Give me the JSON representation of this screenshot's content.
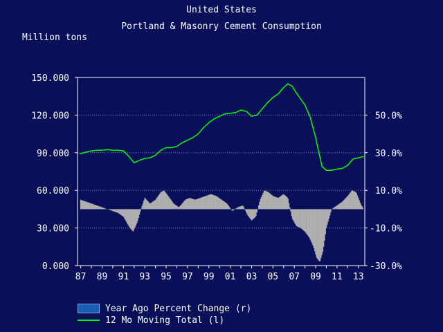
{
  "chart_data": {
    "type": "bar+line",
    "title": "United States",
    "subtitle": "Portland & Masonry Cement Consumption",
    "ylabel_left": "Million tons",
    "y_left": {
      "min": 0,
      "max": 150,
      "ticks": [
        "0.000",
        "30.000",
        "60.000",
        "90.000",
        "120.000",
        "150.000"
      ]
    },
    "y_right": {
      "min": -30,
      "max": 70,
      "ticks": [
        "-30.0%",
        "-10.0%",
        "10.0%",
        "30.0%",
        "50.0%"
      ],
      "tick_values": [
        -30,
        -10,
        10,
        30,
        50
      ]
    },
    "x": {
      "min": 1986.7,
      "max": 2013.6,
      "ticks": [
        "87",
        "89",
        "91",
        "93",
        "95",
        "97",
        "99",
        "01",
        "03",
        "05",
        "07",
        "09",
        "11",
        "13"
      ],
      "tick_values": [
        1987,
        1989,
        1991,
        1993,
        1995,
        1997,
        1999,
        2001,
        2003,
        2005,
        2007,
        2009,
        2011,
        2013
      ]
    },
    "grid": true,
    "series": [
      {
        "name": "12 Mo Moving Total (l)",
        "axis": "left",
        "color": "#00ff00",
        "points": [
          [
            1986.9,
            89
          ],
          [
            1987.5,
            90.5
          ],
          [
            1988.0,
            91.5
          ],
          [
            1988.5,
            92
          ],
          [
            1989.0,
            92
          ],
          [
            1989.5,
            92.5
          ],
          [
            1990.0,
            92
          ],
          [
            1990.5,
            92
          ],
          [
            1991.0,
            91.5
          ],
          [
            1991.5,
            87
          ],
          [
            1992.0,
            82
          ],
          [
            1992.5,
            84
          ],
          [
            1993.0,
            85.5
          ],
          [
            1993.5,
            86
          ],
          [
            1994.0,
            88
          ],
          [
            1994.5,
            92
          ],
          [
            1995.0,
            94
          ],
          [
            1995.5,
            94
          ],
          [
            1996.0,
            95
          ],
          [
            1996.5,
            98
          ],
          [
            1997.0,
            100
          ],
          [
            1997.5,
            102
          ],
          [
            1998.0,
            105
          ],
          [
            1998.5,
            110
          ],
          [
            1999.0,
            114
          ],
          [
            1999.5,
            117
          ],
          [
            2000.0,
            119
          ],
          [
            2000.5,
            121
          ],
          [
            2001.0,
            121.5
          ],
          [
            2001.5,
            122
          ],
          [
            2002.0,
            124
          ],
          [
            2002.5,
            123
          ],
          [
            2003.0,
            119
          ],
          [
            2003.5,
            120
          ],
          [
            2004.0,
            125
          ],
          [
            2004.5,
            130
          ],
          [
            2005.0,
            134
          ],
          [
            2005.5,
            137
          ],
          [
            2006.0,
            142
          ],
          [
            2006.4,
            145
          ],
          [
            2006.8,
            143
          ],
          [
            2007.0,
            140
          ],
          [
            2007.5,
            134
          ],
          [
            2008.0,
            128
          ],
          [
            2008.5,
            118
          ],
          [
            2009.0,
            102
          ],
          [
            2009.3,
            90
          ],
          [
            2009.6,
            79
          ],
          [
            2010.0,
            76
          ],
          [
            2010.5,
            76
          ],
          [
            2011.0,
            77
          ],
          [
            2011.5,
            77.5
          ],
          [
            2012.0,
            80
          ],
          [
            2012.5,
            85
          ],
          [
            2013.0,
            86
          ],
          [
            2013.5,
            87
          ]
        ]
      },
      {
        "name": "Year Ago Percent Change (r)",
        "axis": "right",
        "color": "#b0b0b0",
        "points": [
          [
            1987.0,
            5
          ],
          [
            1987.5,
            4
          ],
          [
            1988.0,
            3
          ],
          [
            1988.5,
            2
          ],
          [
            1989.0,
            1
          ],
          [
            1989.5,
            0
          ],
          [
            1990.0,
            -1
          ],
          [
            1990.5,
            -2
          ],
          [
            1991.0,
            -4
          ],
          [
            1991.5,
            -9
          ],
          [
            1991.9,
            -12
          ],
          [
            1992.3,
            -7
          ],
          [
            1992.7,
            1
          ],
          [
            1993.0,
            6
          ],
          [
            1993.5,
            3
          ],
          [
            1994.0,
            5
          ],
          [
            1994.5,
            9
          ],
          [
            1994.8,
            10
          ],
          [
            1995.2,
            7
          ],
          [
            1995.7,
            3
          ],
          [
            1996.2,
            1
          ],
          [
            1996.8,
            5
          ],
          [
            1997.2,
            6
          ],
          [
            1997.7,
            5
          ],
          [
            1998.2,
            6
          ],
          [
            1998.7,
            7
          ],
          [
            1999.2,
            8
          ],
          [
            1999.7,
            7
          ],
          [
            2000.2,
            5
          ],
          [
            2000.7,
            3
          ],
          [
            2001.2,
            -1
          ],
          [
            2001.7,
            1
          ],
          [
            2002.2,
            2
          ],
          [
            2002.6,
            -3
          ],
          [
            2003.0,
            -6
          ],
          [
            2003.4,
            -4
          ],
          [
            2003.8,
            5
          ],
          [
            2004.2,
            10
          ],
          [
            2004.6,
            9
          ],
          [
            2005.0,
            7
          ],
          [
            2005.5,
            6
          ],
          [
            2006.0,
            8
          ],
          [
            2006.4,
            6
          ],
          [
            2006.8,
            -5
          ],
          [
            2007.2,
            -9
          ],
          [
            2007.6,
            -10
          ],
          [
            2008.0,
            -12
          ],
          [
            2008.4,
            -15
          ],
          [
            2008.8,
            -20
          ],
          [
            2009.1,
            -26
          ],
          [
            2009.4,
            -28
          ],
          [
            2009.7,
            -22
          ],
          [
            2010.0,
            -10
          ],
          [
            2010.5,
            0
          ],
          [
            2011.0,
            2
          ],
          [
            2011.5,
            4
          ],
          [
            2012.0,
            7
          ],
          [
            2012.4,
            10
          ],
          [
            2012.8,
            9
          ],
          [
            2013.2,
            3
          ],
          [
            2013.5,
            0
          ]
        ]
      }
    ]
  }
}
